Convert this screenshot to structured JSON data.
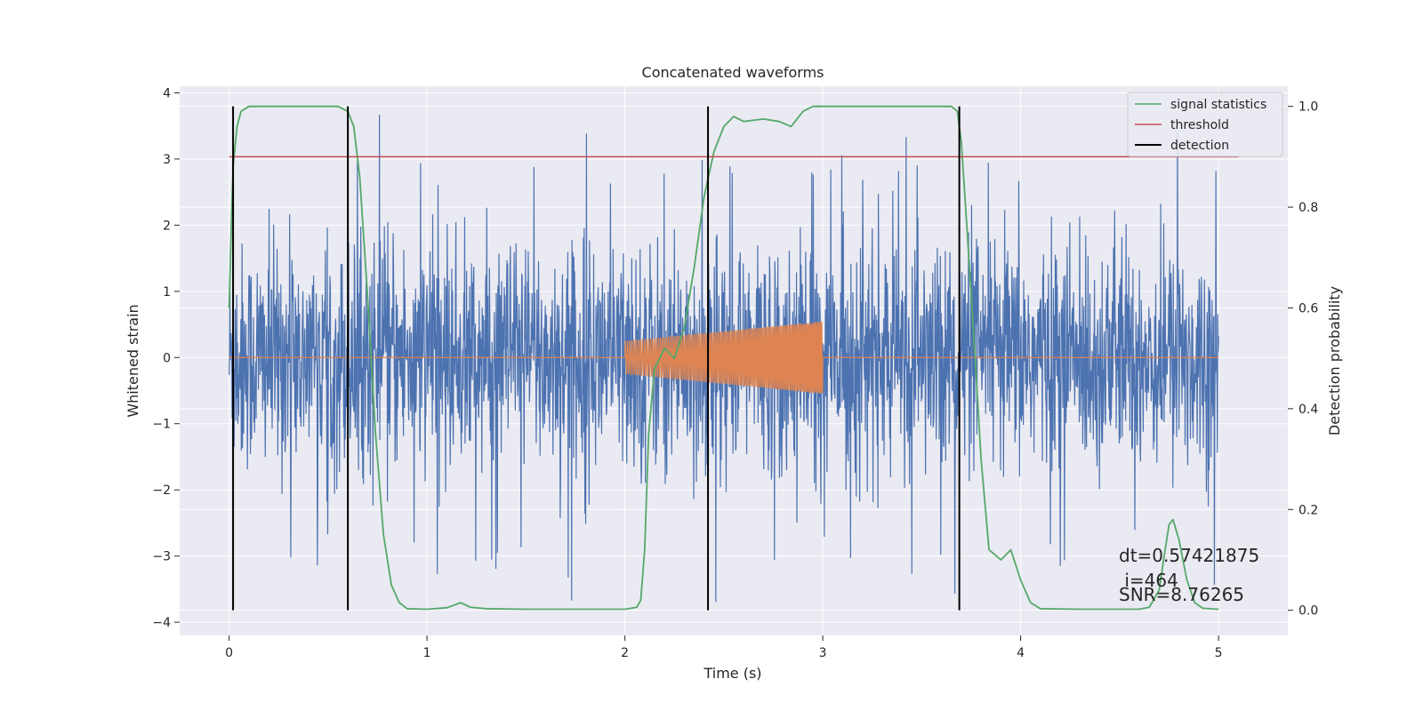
{
  "chart_data": {
    "type": "line",
    "title": "Concatenated waveforms",
    "xlabel": "Time (s)",
    "ylabel": "Whitened strain",
    "ylabel_right": "Detection probability",
    "xlim": [
      -0.25,
      5.35
    ],
    "ylim": [
      -4.2,
      4.1
    ],
    "ylim_right": [
      -0.05,
      1.04
    ],
    "x_ticks": [
      0,
      1,
      2,
      3,
      4,
      5
    ],
    "x_tick_labels": [
      "0",
      "1",
      "2",
      "3",
      "4",
      "5"
    ],
    "y_ticks": [
      -4,
      -3,
      -2,
      -1,
      0,
      1,
      2,
      3,
      4
    ],
    "y_tick_labels": [
      "−4",
      "−3",
      "−2",
      "−1",
      "0",
      "1",
      "2",
      "3",
      "4"
    ],
    "y_right_ticks": [
      0.0,
      0.2,
      0.4,
      0.6,
      0.8,
      1.0
    ],
    "y_right_tick_labels": [
      "0.0",
      "0.2",
      "0.4",
      "0.6",
      "0.8",
      "1.0"
    ],
    "grid": true,
    "legend_position": "upper-right",
    "series": [
      {
        "name": "signal statistics",
        "axis": "right",
        "color": "#55a868",
        "x": [
          0.0,
          0.01,
          0.02,
          0.04,
          0.06,
          0.1,
          0.2,
          0.4,
          0.55,
          0.6,
          0.63,
          0.66,
          0.7,
          0.74,
          0.78,
          0.82,
          0.86,
          0.9,
          1.0,
          1.1,
          1.17,
          1.22,
          1.3,
          1.5,
          1.7,
          1.9,
          2.0,
          2.06,
          2.08,
          2.1,
          2.12,
          2.15,
          2.2,
          2.25,
          2.3,
          2.35,
          2.4,
          2.45,
          2.5,
          2.55,
          2.6,
          2.7,
          2.78,
          2.84,
          2.9,
          2.95,
          3.0,
          3.2,
          3.5,
          3.65,
          3.68,
          3.7,
          3.73,
          3.77,
          3.8,
          3.84,
          3.9,
          3.95,
          4.0,
          4.05,
          4.1,
          4.3,
          4.6,
          4.65,
          4.7,
          4.73,
          4.75,
          4.77,
          4.8,
          4.84,
          4.88,
          4.92,
          5.0
        ],
        "y": [
          0.6,
          0.75,
          0.88,
          0.96,
          0.99,
          1.0,
          1.0,
          1.0,
          1.0,
          0.99,
          0.96,
          0.86,
          0.62,
          0.35,
          0.15,
          0.05,
          0.015,
          0.003,
          0.002,
          0.005,
          0.015,
          0.006,
          0.003,
          0.002,
          0.002,
          0.002,
          0.002,
          0.006,
          0.02,
          0.12,
          0.35,
          0.48,
          0.52,
          0.5,
          0.56,
          0.68,
          0.82,
          0.91,
          0.96,
          0.98,
          0.97,
          0.975,
          0.97,
          0.96,
          0.99,
          1.0,
          1.0,
          1.0,
          1.0,
          1.0,
          0.99,
          0.93,
          0.75,
          0.5,
          0.3,
          0.12,
          0.1,
          0.12,
          0.06,
          0.015,
          0.003,
          0.002,
          0.002,
          0.006,
          0.04,
          0.12,
          0.17,
          0.18,
          0.14,
          0.06,
          0.015,
          0.004,
          0.002
        ]
      },
      {
        "name": "threshold",
        "axis": "right",
        "color": "#c44e52",
        "x": [
          0.0,
          5.1
        ],
        "y": [
          0.9,
          0.9
        ]
      },
      {
        "name": "detection",
        "axis": "right",
        "color": "#000000",
        "type": "vlines",
        "x": [
          0.02,
          0.6,
          2.42,
          3.69
        ],
        "y_range": [
          0.0,
          1.0
        ]
      },
      {
        "name": "",
        "axis": "left",
        "color": "#4c72b0",
        "type": "noise",
        "x_range": [
          0.0,
          5.0
        ],
        "envelope": 1.8,
        "peak": 3.7
      },
      {
        "name": "",
        "axis": "left",
        "color": "#dd8452",
        "type": "chirp",
        "x_range": [
          0.0,
          5.0
        ],
        "chirp_x_range": [
          2.0,
          3.0
        ],
        "amplitude_start": 0.25,
        "amplitude_end": 0.55
      }
    ],
    "annotations": [
      "dt=0.57421875",
      " i=464",
      "SNR=8.76265"
    ]
  },
  "colors": {
    "plot_background": "#eaeaf2",
    "grid": "#ffffff",
    "noise": "#4c72b0",
    "chirp": "#dd8452",
    "statistics": "#55a868",
    "threshold": "#c44e52",
    "detection": "#000000"
  }
}
